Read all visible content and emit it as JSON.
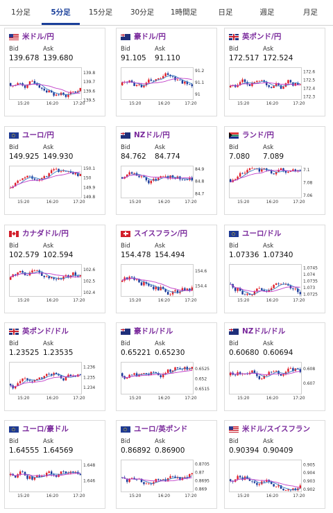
{
  "tabs": [
    {
      "label": "1分足",
      "active": false
    },
    {
      "label": "5分足",
      "active": true
    },
    {
      "label": "15分足",
      "active": false
    },
    {
      "label": "30分足",
      "active": false
    },
    {
      "label": "1時間足",
      "active": false
    },
    {
      "label": "日足",
      "active": false
    },
    {
      "label": "週足",
      "active": false
    },
    {
      "label": "月足",
      "active": false
    }
  ],
  "bid_label": "Bid",
  "ask_label": "Ask",
  "time_labels": [
    "15:20",
    "16:20",
    "17:20"
  ],
  "colors": {
    "up": "#e0202a",
    "down": "#1a3a9a",
    "ma_short": "#3a7ec4",
    "ma_long": "#c03cc8",
    "title": "#7a2a9c"
  },
  "cards": [
    {
      "pair": "米ドル/円",
      "flag": "us",
      "bid": "139.678",
      "ask": "139.680",
      "ticks": [
        "139.8",
        "139.7",
        "139.6",
        "139.5"
      ],
      "ymin": 139.5,
      "ymax": 139.85
    },
    {
      "pair": "豪ドル/円",
      "flag": "au",
      "bid": "91.105",
      "ask": "91.110",
      "ticks": [
        "91.2",
        "91.1",
        "91"
      ],
      "ymin": 90.95,
      "ymax": 91.22
    },
    {
      "pair": "英ポンド/円",
      "flag": "gb",
      "bid": "172.517",
      "ask": "172.524",
      "ticks": [
        "172.6",
        "172.5",
        "172.4",
        "172.3"
      ],
      "ymin": 172.26,
      "ymax": 172.64
    },
    {
      "pair": "ユーロ/円",
      "flag": "eu",
      "bid": "149.925",
      "ask": "149.930",
      "ticks": [
        "150.1",
        "150",
        "149.9",
        "149.8"
      ],
      "ymin": 149.78,
      "ymax": 150.12
    },
    {
      "pair": "NZドル/円",
      "flag": "nz",
      "bid": "84.762",
      "ask": "84.774",
      "ticks": [
        "84.9",
        "84.8",
        "84.7"
      ],
      "ymin": 84.66,
      "ymax": 84.92
    },
    {
      "pair": "ランド/円",
      "flag": "za",
      "bid": "7.080",
      "ask": "7.089",
      "ticks": [
        "7.1",
        "7.08",
        "7.06"
      ],
      "ymin": 7.055,
      "ymax": 7.105
    },
    {
      "pair": "カナダドル/円",
      "flag": "ca",
      "bid": "102.579",
      "ask": "102.594",
      "ticks": [
        "102.6",
        "102.5",
        "102.4"
      ],
      "ymin": 102.36,
      "ymax": 102.64
    },
    {
      "pair": "スイスフラン/円",
      "flag": "ch",
      "bid": "154.478",
      "ask": "154.494",
      "ticks": [
        "154.6",
        "154.4"
      ],
      "ymin": 154.25,
      "ymax": 154.68
    },
    {
      "pair": "ユーロ/ドル",
      "flag": "eu",
      "bid": "1.07336",
      "ask": "1.07340",
      "ticks": [
        "1.0745",
        "1.074",
        "1.0735",
        "1.073",
        "1.0725"
      ],
      "ymin": 1.0723,
      "ymax": 1.0747
    },
    {
      "pair": "英ポンド/ドル",
      "flag": "gb",
      "bid": "1.23525",
      "ask": "1.23535",
      "ticks": [
        "1.236",
        "1.235",
        "1.234"
      ],
      "ymin": 1.2333,
      "ymax": 1.2364
    },
    {
      "pair": "豪ドル/ドル",
      "flag": "au",
      "bid": "0.65221",
      "ask": "0.65230",
      "ticks": [
        "0.6525",
        "0.652",
        "0.6515"
      ],
      "ymin": 0.6512,
      "ymax": 0.6528
    },
    {
      "pair": "NZドル/ドル",
      "flag": "nz",
      "bid": "0.60680",
      "ask": "0.60694",
      "ticks": [
        "0.608",
        "0.607"
      ],
      "ymin": 0.6062,
      "ymax": 0.6084
    },
    {
      "pair": "ユーロ/豪ドル",
      "flag": "eu",
      "bid": "1.64555",
      "ask": "1.64569",
      "ticks": [
        "1.648",
        "1.646"
      ],
      "ymin": 1.6445,
      "ymax": 1.6486
    },
    {
      "pair": "ユーロ/英ポンド",
      "flag": "eu",
      "bid": "0.86892",
      "ask": "0.86900",
      "ticks": [
        "0.8705",
        "0.87",
        "0.8695",
        "0.869"
      ],
      "ymin": 0.8688,
      "ymax": 0.8707
    },
    {
      "pair": "米ドル/スイスフラン",
      "flag": "us",
      "bid": "0.90394",
      "ask": "0.90409",
      "ticks": [
        "0.905",
        "0.904",
        "0.903",
        "0.902"
      ],
      "ymin": 0.9016,
      "ymax": 0.9055
    }
  ]
}
